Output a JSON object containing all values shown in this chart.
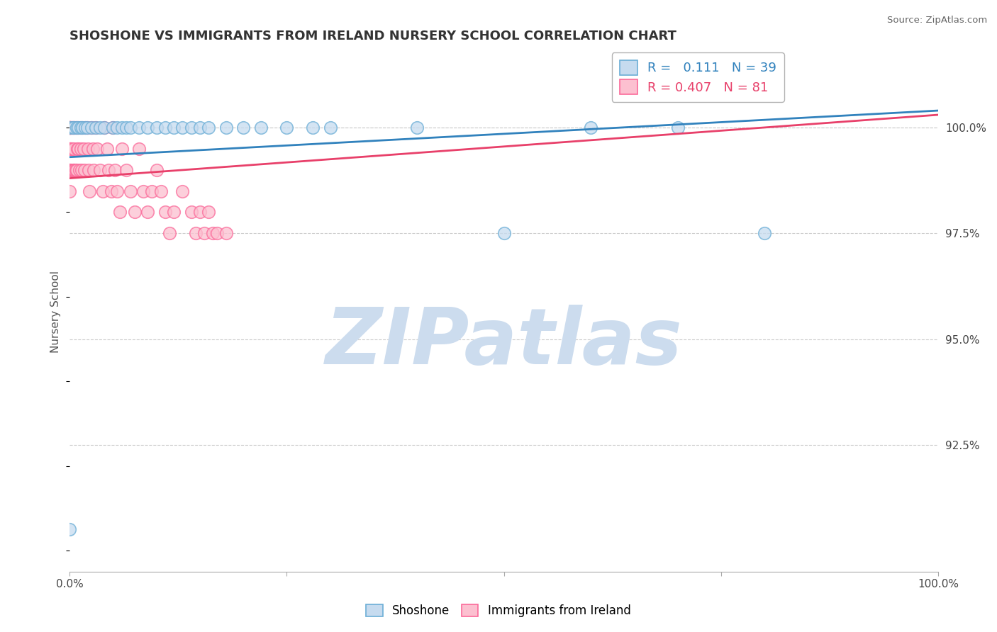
{
  "title": "SHOSHONE VS IMMIGRANTS FROM IRELAND NURSERY SCHOOL CORRELATION CHART",
  "source": "Source: ZipAtlas.com",
  "ylabel": "Nursery School",
  "xlim": [
    0.0,
    100.0
  ],
  "ylim": [
    89.5,
    101.8
  ],
  "yticks_right": [
    92.5,
    95.0,
    97.5,
    100.0
  ],
  "ytick_labels_right": [
    "92.5%",
    "95.0%",
    "97.5%",
    "100.0%"
  ],
  "grid_color": "#cccccc",
  "background_color": "#ffffff",
  "watermark": "ZIPatlas",
  "watermark_color": "#ccdcee",
  "shoshone": {
    "name": "Shoshone",
    "color": "#6baed6",
    "face_color": "#c6dbef",
    "R": 0.111,
    "N": 39,
    "x": [
      0.0,
      0.3,
      0.5,
      0.8,
      1.0,
      1.3,
      1.5,
      1.8,
      2.0,
      2.5,
      3.0,
      3.5,
      4.0,
      5.0,
      5.5,
      6.0,
      6.5,
      7.0,
      8.0,
      9.0,
      10.0,
      11.0,
      12.0,
      13.0,
      14.0,
      15.0,
      16.0,
      18.0,
      20.0,
      22.0,
      25.0,
      28.0,
      30.0,
      40.0,
      50.0,
      60.0,
      70.0,
      80.0,
      0.0
    ],
    "y": [
      100.0,
      100.0,
      100.0,
      100.0,
      100.0,
      100.0,
      100.0,
      100.0,
      100.0,
      100.0,
      100.0,
      100.0,
      100.0,
      100.0,
      100.0,
      100.0,
      100.0,
      100.0,
      100.0,
      100.0,
      100.0,
      100.0,
      100.0,
      100.0,
      100.0,
      100.0,
      100.0,
      100.0,
      100.0,
      100.0,
      100.0,
      100.0,
      100.0,
      100.0,
      97.5,
      100.0,
      100.0,
      97.5,
      90.5
    ],
    "trendline_color": "#3182bd",
    "trendline_x": [
      0.0,
      100.0
    ],
    "trendline_y": [
      99.3,
      100.4
    ]
  },
  "ireland": {
    "name": "Immigrants from Ireland",
    "color": "#fb6a9a",
    "face_color": "#fcc0d0",
    "R": 0.407,
    "N": 81,
    "x": [
      0.0,
      0.0,
      0.0,
      0.0,
      0.0,
      0.0,
      0.0,
      0.0,
      0.0,
      0.0,
      0.1,
      0.1,
      0.1,
      0.2,
      0.2,
      0.2,
      0.3,
      0.3,
      0.4,
      0.4,
      0.5,
      0.5,
      0.5,
      0.6,
      0.6,
      0.7,
      0.7,
      0.8,
      0.8,
      0.9,
      1.0,
      1.0,
      1.1,
      1.2,
      1.3,
      1.4,
      1.5,
      1.6,
      1.7,
      1.8,
      2.0,
      2.1,
      2.2,
      2.3,
      2.5,
      2.7,
      2.8,
      3.0,
      3.2,
      3.5,
      3.8,
      4.0,
      4.3,
      4.5,
      4.8,
      5.0,
      5.2,
      5.5,
      5.8,
      6.0,
      6.5,
      7.0,
      7.5,
      8.0,
      8.5,
      9.0,
      9.5,
      10.0,
      10.5,
      11.0,
      11.5,
      12.0,
      13.0,
      14.0,
      14.5,
      15.0,
      15.5,
      16.0,
      16.5,
      17.0,
      18.0
    ],
    "y": [
      100.0,
      100.0,
      100.0,
      100.0,
      100.0,
      99.5,
      99.5,
      99.0,
      99.0,
      98.5,
      100.0,
      100.0,
      99.5,
      100.0,
      99.5,
      99.0,
      100.0,
      99.5,
      100.0,
      99.0,
      100.0,
      99.5,
      99.0,
      100.0,
      99.0,
      100.0,
      99.0,
      100.0,
      99.0,
      99.5,
      100.0,
      99.5,
      99.0,
      100.0,
      99.5,
      99.0,
      100.0,
      99.5,
      99.0,
      100.0,
      100.0,
      99.5,
      99.0,
      98.5,
      100.0,
      99.5,
      99.0,
      100.0,
      99.5,
      99.0,
      98.5,
      100.0,
      99.5,
      99.0,
      98.5,
      100.0,
      99.0,
      98.5,
      98.0,
      99.5,
      99.0,
      98.5,
      98.0,
      99.5,
      98.5,
      98.0,
      98.5,
      99.0,
      98.5,
      98.0,
      97.5,
      98.0,
      98.5,
      98.0,
      97.5,
      98.0,
      97.5,
      98.0,
      97.5,
      97.5,
      97.5
    ],
    "trendline_color": "#e8406a",
    "trendline_x": [
      0.0,
      100.0
    ],
    "trendline_y": [
      98.8,
      100.3
    ]
  }
}
